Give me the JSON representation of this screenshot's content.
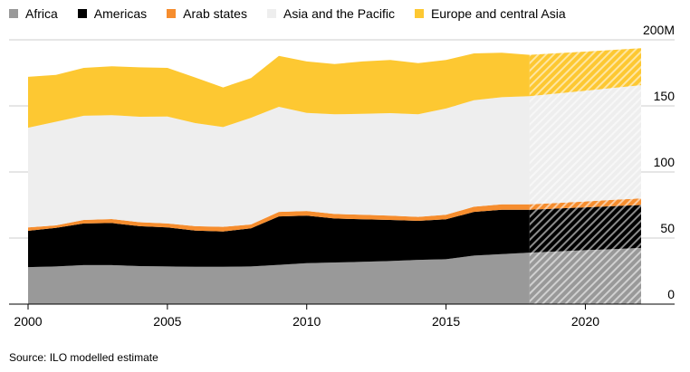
{
  "chart_data": {
    "type": "area",
    "stacked": true,
    "title": "",
    "xlabel": "",
    "ylabel": "",
    "unit_suffix": "M",
    "x": [
      2000,
      2001,
      2002,
      2003,
      2004,
      2005,
      2006,
      2007,
      2008,
      2009,
      2010,
      2011,
      2012,
      2013,
      2014,
      2015,
      2016,
      2017,
      2018,
      2019,
      2020,
      2021,
      2022
    ],
    "projected_from": 2018,
    "ylim": [
      0,
      200
    ],
    "xlim": [
      2000,
      2022
    ],
    "yticks": [
      0,
      50,
      100,
      150,
      200
    ],
    "ytick_labels": [
      "0",
      "50",
      "100",
      "150",
      "200M"
    ],
    "xticks": [
      2000,
      2005,
      2010,
      2015,
      2020
    ],
    "xtick_labels": [
      "2000",
      "2005",
      "2010",
      "2015",
      "2020"
    ],
    "grid": true,
    "legend_position": "top-left",
    "series": [
      {
        "name": "Africa",
        "color": "#999999",
        "values": [
          28.0,
          28.5,
          29.5,
          29.5,
          28.8,
          28.5,
          28.3,
          28.3,
          28.5,
          29.7,
          31.0,
          31.5,
          32.0,
          32.6,
          33.5,
          34.0,
          36.7,
          37.9,
          39.0,
          39.9,
          40.8,
          41.6,
          42.5
        ]
      },
      {
        "name": "Americas",
        "color": "#000000",
        "values": [
          27.5,
          29.2,
          31.5,
          31.9,
          30.2,
          29.5,
          27.4,
          26.7,
          28.8,
          36.7,
          36.0,
          33.3,
          32.2,
          31.1,
          29.5,
          30.2,
          33.1,
          33.5,
          32.4,
          32.4,
          32.4,
          32.5,
          32.5
        ]
      },
      {
        "name": "Arab states",
        "color": "#f68d2e",
        "values": [
          2.5,
          1.9,
          2.7,
          3.0,
          3.0,
          3.0,
          3.3,
          3.5,
          3.0,
          3.4,
          3.5,
          3.4,
          3.4,
          3.3,
          3.0,
          3.4,
          3.9,
          4.1,
          4.1,
          4.3,
          4.5,
          4.8,
          5.0
        ]
      },
      {
        "name": "Asia and the Pacific",
        "color": "#eeeeee",
        "values": [
          75.5,
          78.4,
          78.8,
          78.6,
          79.8,
          81.0,
          78.0,
          75.5,
          80.7,
          79.5,
          74.2,
          75.4,
          76.4,
          77.5,
          77.6,
          80.4,
          80.6,
          81.1,
          81.8,
          82.8,
          83.8,
          84.7,
          85.7
        ]
      },
      {
        "name": "Europe and central Asia",
        "color": "#fdc832",
        "values": [
          38.5,
          35.5,
          36.3,
          37.0,
          37.4,
          36.8,
          34.5,
          30.0,
          30.0,
          38.6,
          38.9,
          38.1,
          39.6,
          40.2,
          38.8,
          36.7,
          35.4,
          33.6,
          31.3,
          30.5,
          29.6,
          28.8,
          27.9
        ]
      }
    ]
  },
  "source": "Source: ILO modelled estimate"
}
